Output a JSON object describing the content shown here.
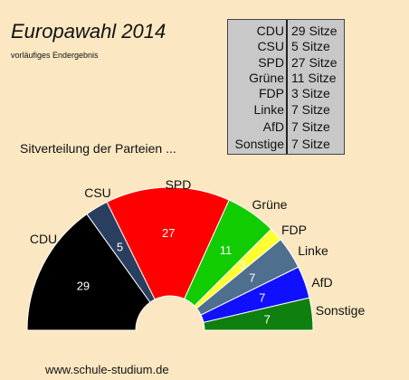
{
  "header": {
    "title": "Europawahl 2014",
    "subtitle": "vorläufiges Endergebnis",
    "caption": "Sitverteilung der Parteien  ...",
    "footer": "www.schule-studium.de"
  },
  "seat_table": [
    {
      "party": "CDU",
      "seats": "29 Sitze"
    },
    {
      "party": "CSU",
      "seats": "5 Sitze"
    },
    {
      "party": "SPD",
      "seats": "27 Sitze"
    },
    {
      "party": "Grüne",
      "seats": "11 Sitze"
    },
    {
      "party": "FDP",
      "seats": "3 Sitze"
    },
    {
      "party": "Linke",
      "seats": "7 Sitze"
    },
    {
      "party": "AfD",
      "seats": "7 Sitze"
    },
    {
      "party": "Sonstige",
      "seats": "7 Sitze"
    }
  ],
  "chart_data": {
    "type": "pie",
    "subtype": "half-donut",
    "categories": [
      "CDU",
      "CSU",
      "SPD",
      "Grüne",
      "FDP",
      "Linke",
      "AfD",
      "Sonstige"
    ],
    "values": [
      29,
      5,
      27,
      11,
      3,
      7,
      7,
      7
    ],
    "colors": [
      "#000000",
      "#2a3f5f",
      "#ff0000",
      "#11cc00",
      "#ffff33",
      "#4f6f8f",
      "#1010ff",
      "#0f7f0f"
    ],
    "value_label_colors": [
      "#ffffff",
      "#ffffff",
      "#ffffff",
      "#ffffff",
      "#e0a000",
      "#ffffff",
      "#ffffff",
      "#ffffff"
    ]
  }
}
